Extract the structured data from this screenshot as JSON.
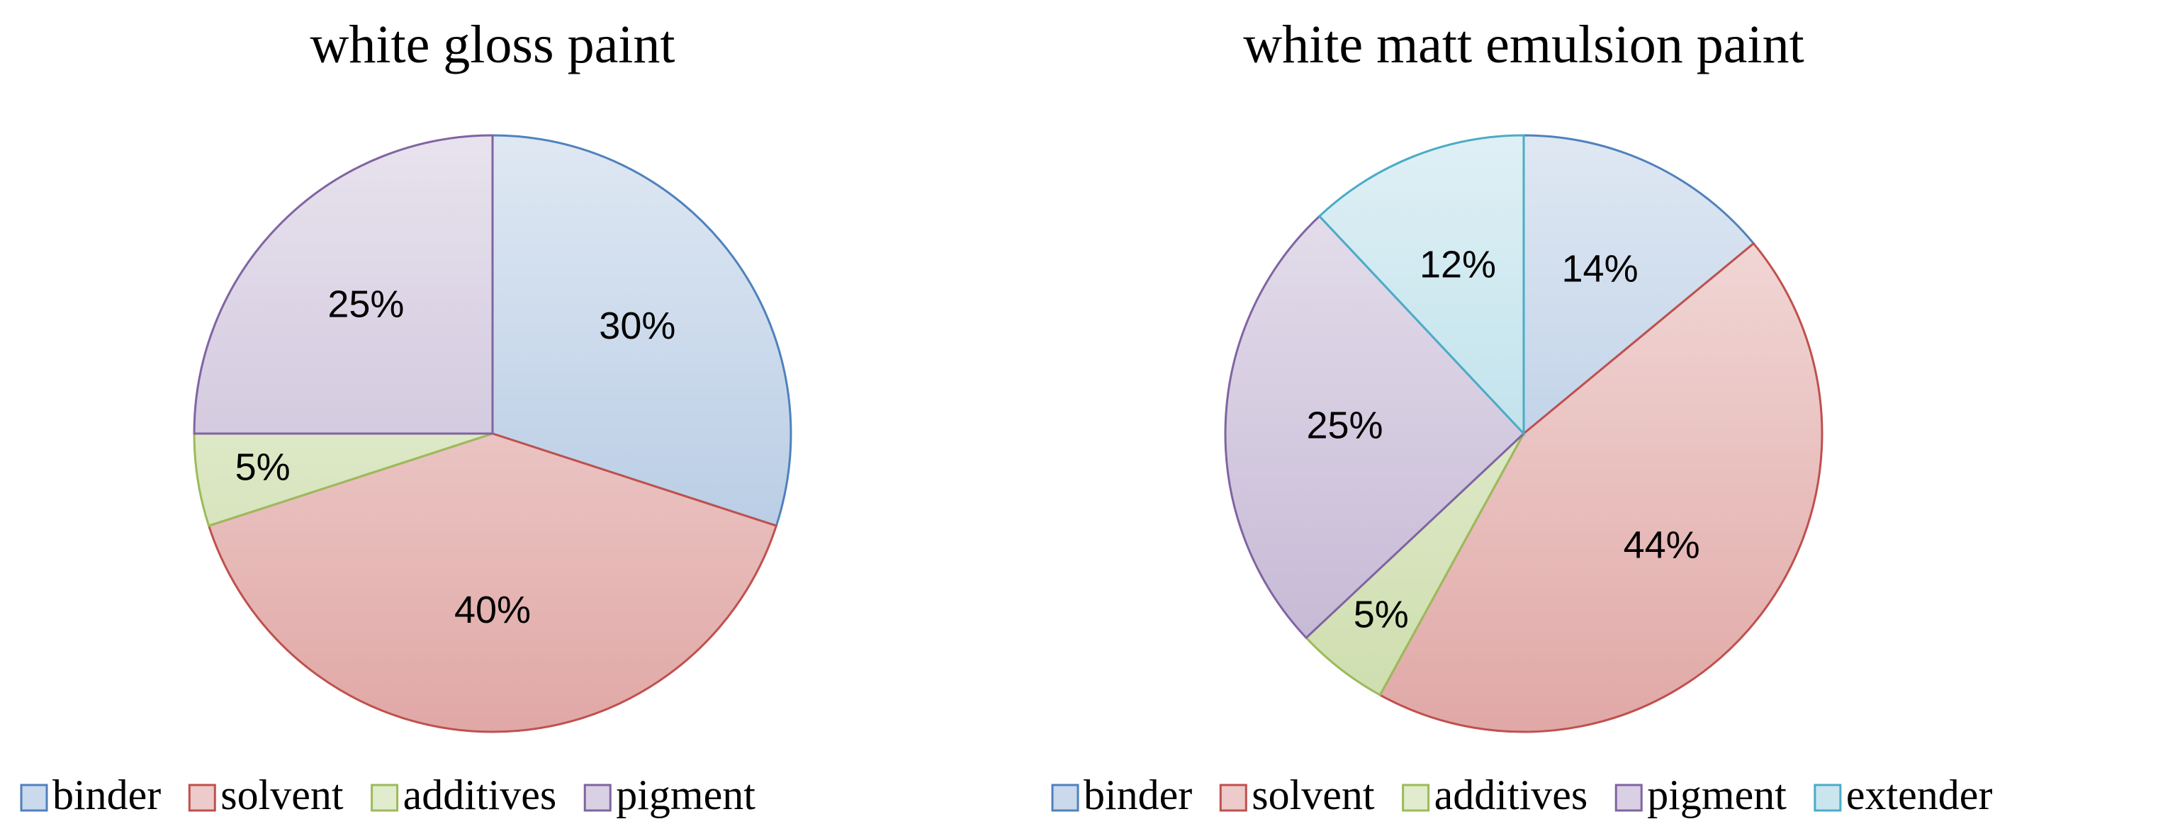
{
  "chart_data": [
    {
      "type": "pie",
      "title": "white gloss paint",
      "categories": [
        "binder",
        "solvent",
        "additives",
        "pigment"
      ],
      "values": [
        30,
        40,
        5,
        25
      ],
      "value_labels": [
        "30%",
        "40%",
        "5%",
        "25%"
      ],
      "colors": [
        "#4f81bd",
        "#c0504d",
        "#9bbb59",
        "#8064a2"
      ],
      "legend": "bottom"
    },
    {
      "type": "pie",
      "title": "white matt emulsion paint",
      "categories": [
        "binder",
        "solvent",
        "additives",
        "pigment",
        "extender"
      ],
      "values": [
        14,
        44,
        5,
        25,
        12
      ],
      "value_labels": [
        "14%",
        "44%",
        "5%",
        "25%",
        "12%"
      ],
      "colors": [
        "#4f81bd",
        "#c0504d",
        "#9bbb59",
        "#8064a2",
        "#4bacc6"
      ],
      "legend": "bottom"
    }
  ]
}
